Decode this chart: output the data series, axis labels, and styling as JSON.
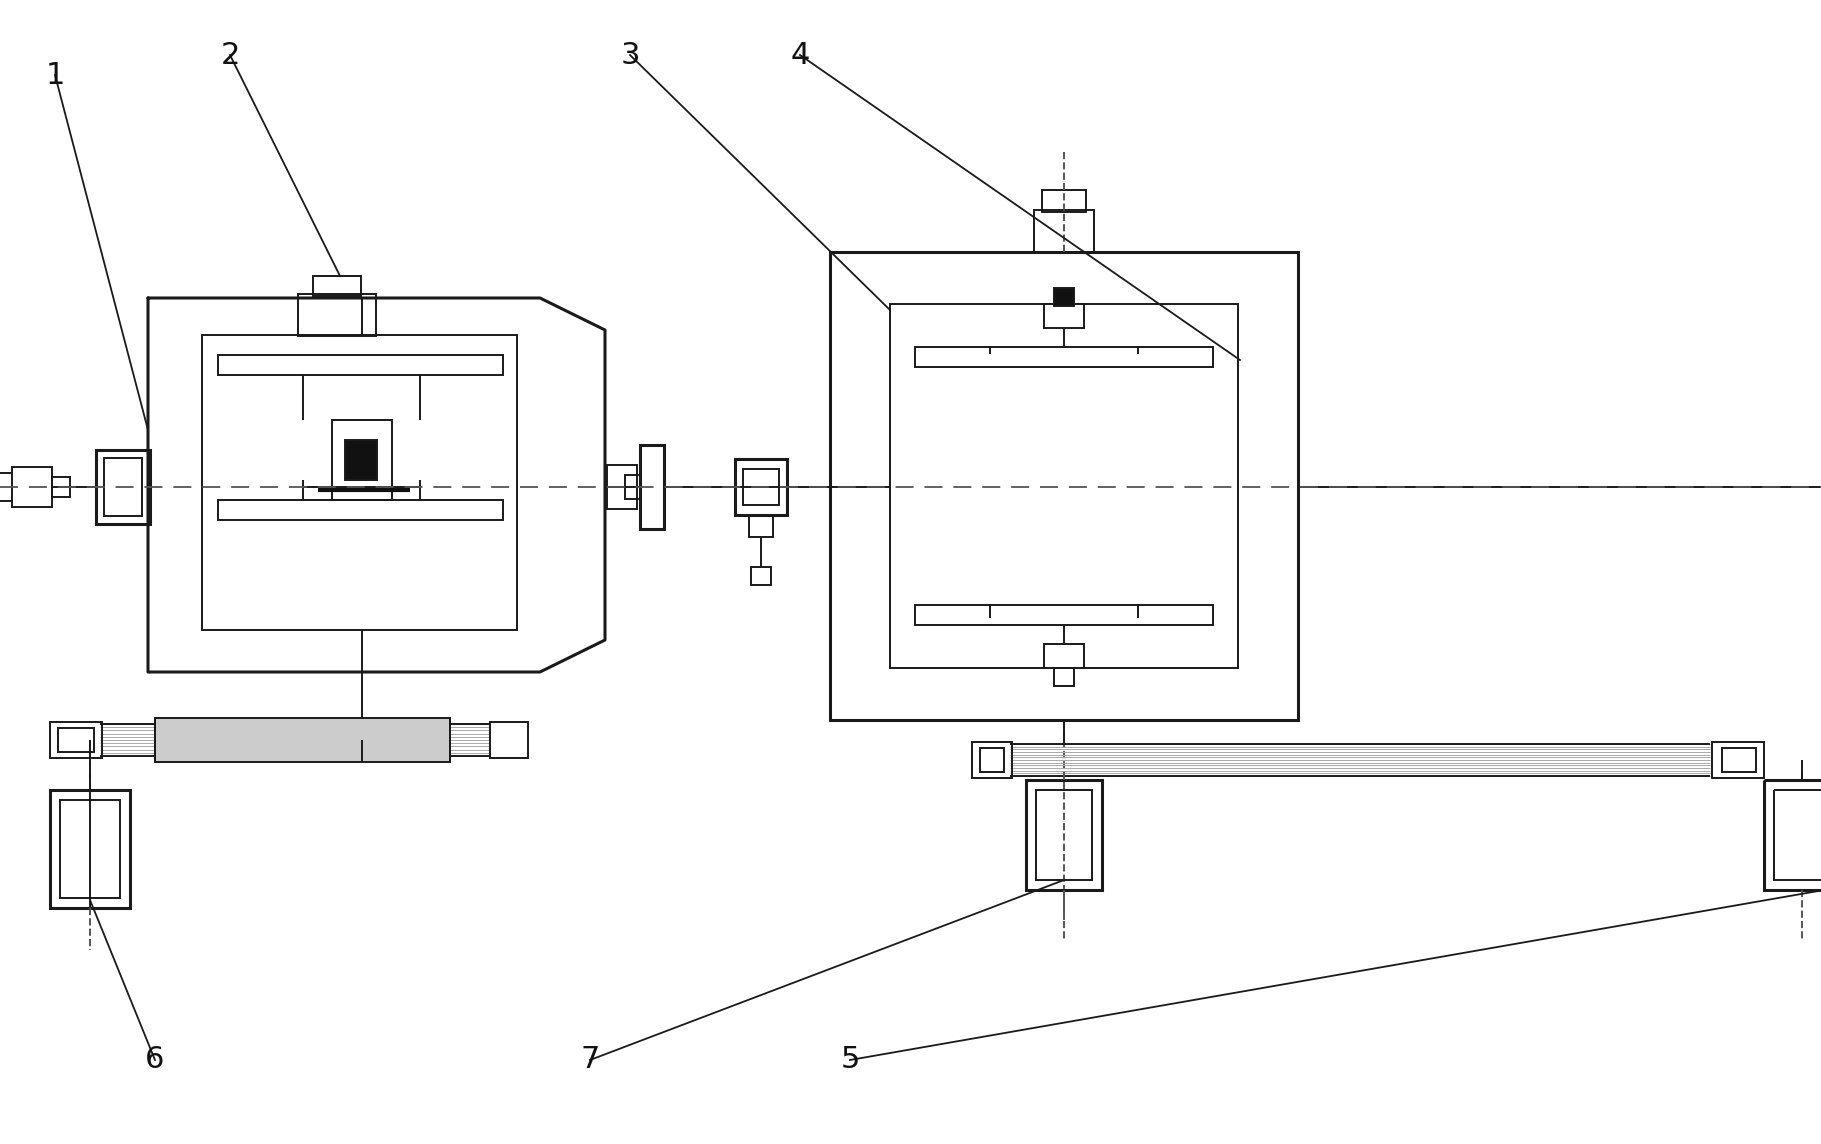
{
  "bg_color": "#ffffff",
  "line_color": "#1a1a1a",
  "dashed_color": "#555555",
  "gray_fill": "#999999",
  "dark_fill": "#111111",
  "label_color": "#111111",
  "lw": 1.4,
  "lw2": 2.2,
  "fig_w": 18.21,
  "fig_h": 11.44
}
